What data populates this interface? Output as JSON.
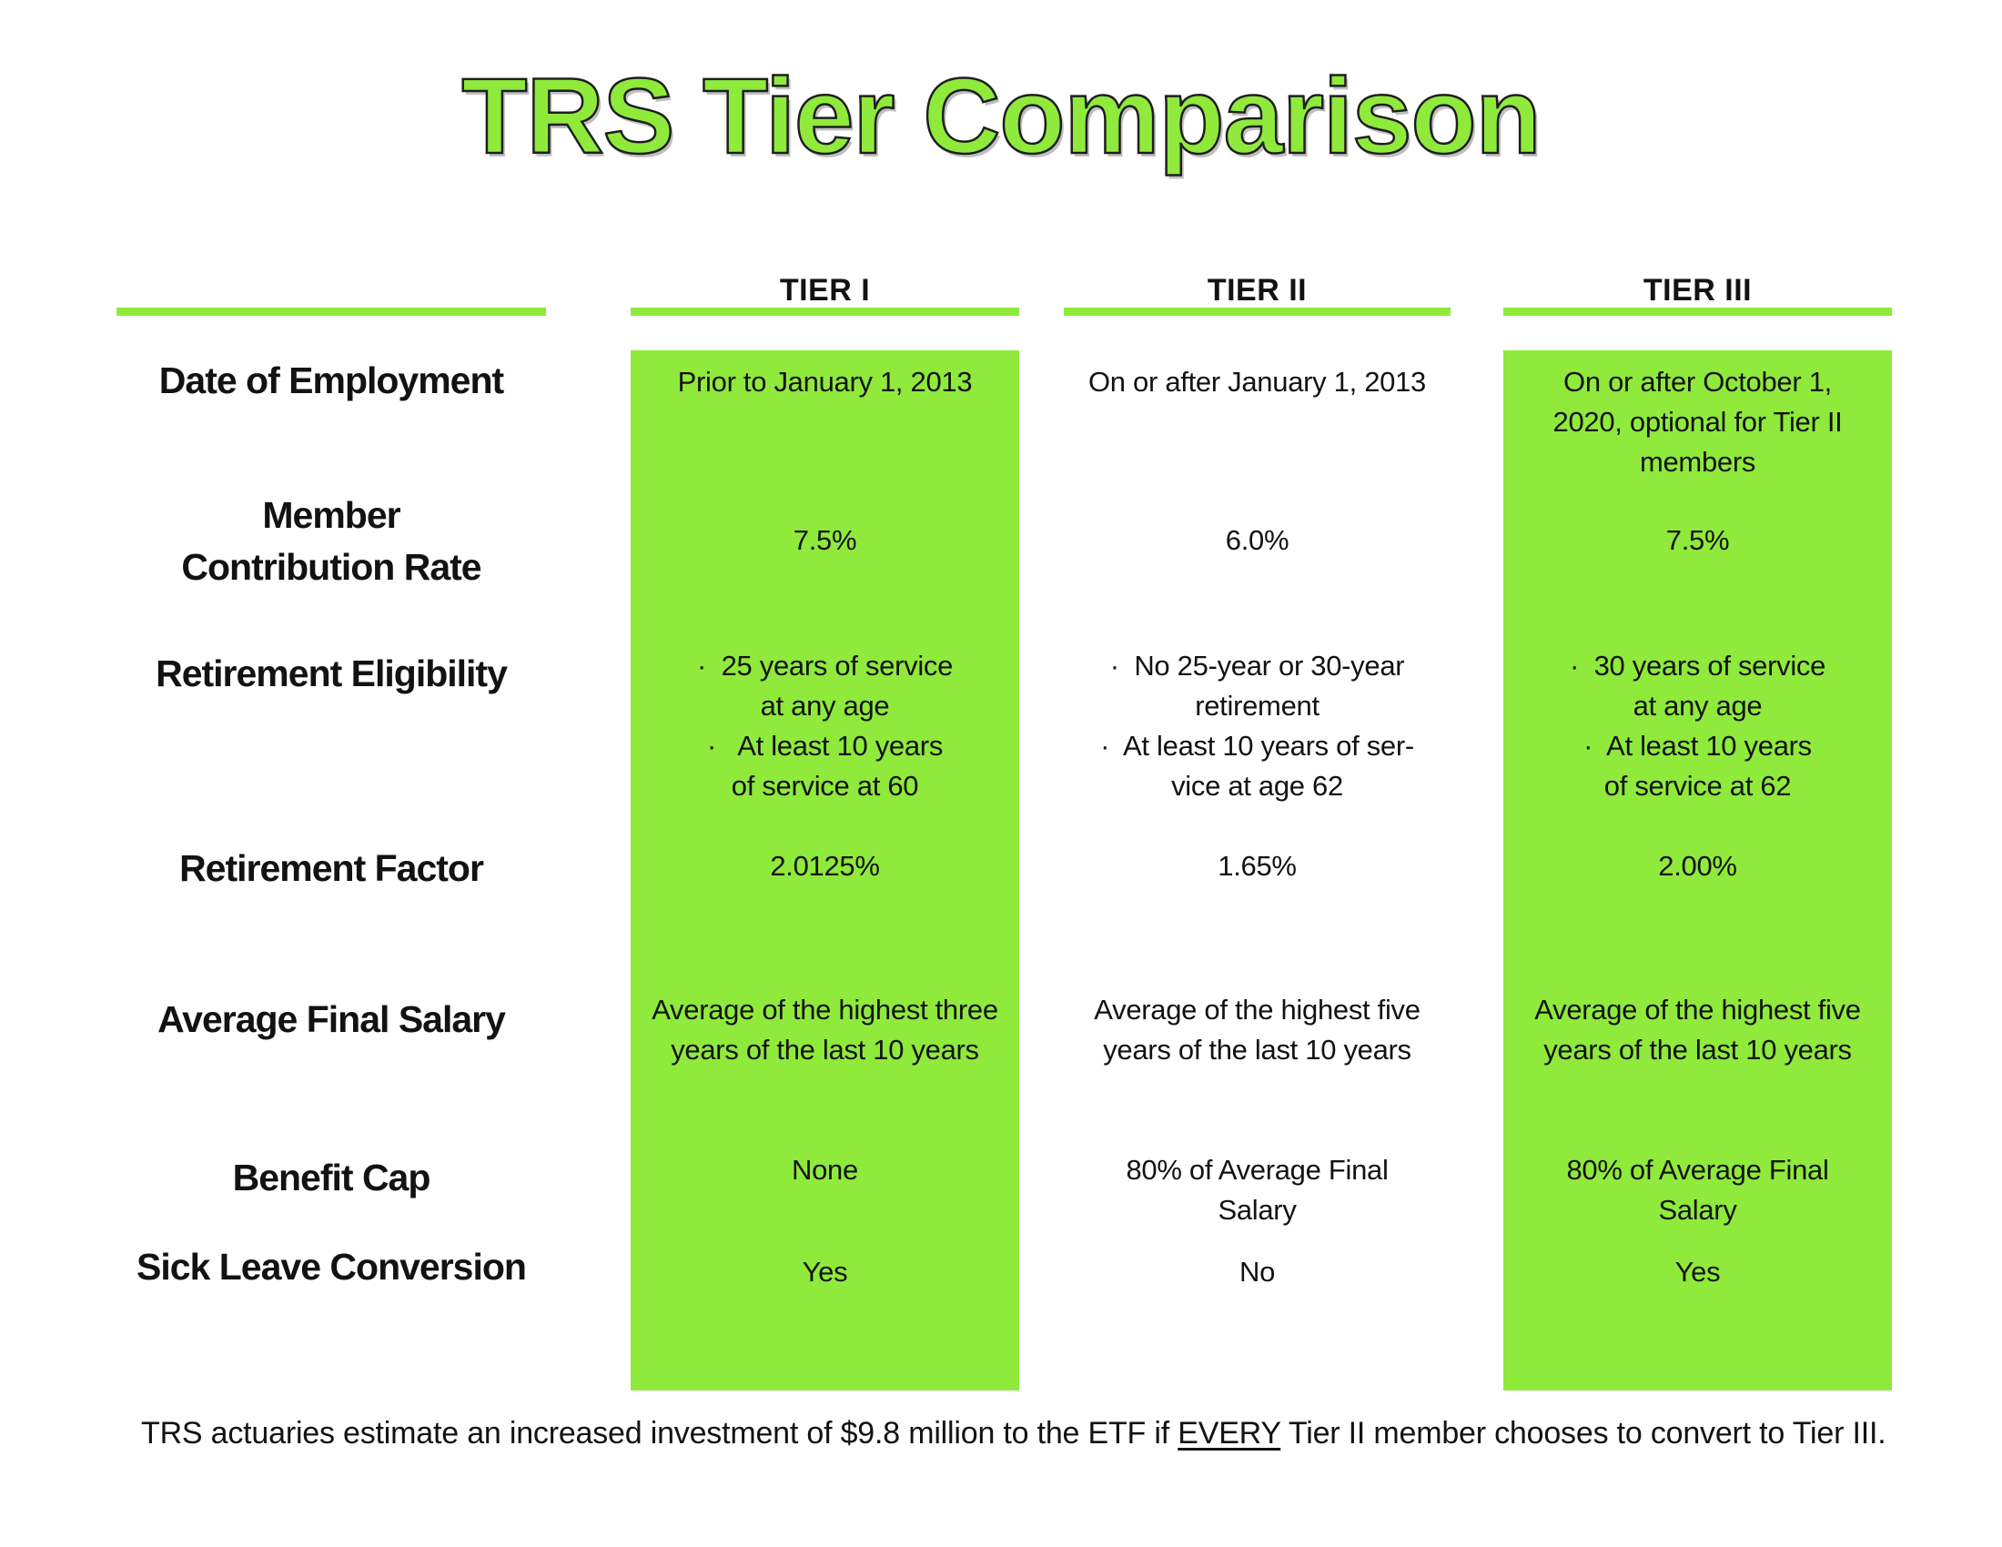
{
  "title": "TRS Tier Comparison",
  "theme": {
    "green": "#8FEA3C",
    "text": "#121212",
    "title_outline": "#1e1e1e"
  },
  "columns": {
    "tier1": "TIER I",
    "tier2": "TIER II",
    "tier3": "TIER III"
  },
  "rows": [
    {
      "label": "Date of Employment",
      "tier1": "Prior to January 1, 2013",
      "tier2": "On or after January 1, 2013",
      "tier3": "On or after October 1,\n2020, optional for Tier II\nmembers"
    },
    {
      "label": "Member\nContribution Rate",
      "tier1": "7.5%",
      "tier2": "6.0%",
      "tier3": "7.5%"
    },
    {
      "label": "Retirement Eligibility",
      "tier1": "·  25 years of service\nat any age\n·   At least 10 years\nof service at 60",
      "tier2": "·  No 25-year or 30-year\nretirement\n·  At least 10 years of ser-\nvice at age 62",
      "tier3": "·  30 years of service\nat any age\n·  At least 10 years\nof service at 62"
    },
    {
      "label": "Retirement Factor",
      "tier1": "2.0125%",
      "tier2": "1.65%",
      "tier3": "2.00%"
    },
    {
      "label": "Average Final Salary",
      "tier1": "Average of the highest three\nyears of the last 10 years",
      "tier2": "Average of the highest five\nyears of the last 10 years",
      "tier3": "Average of the highest five\nyears of the last 10 years"
    },
    {
      "label": "Benefit Cap",
      "tier1": "None",
      "tier2": "80% of Average Final\nSalary",
      "tier3": "80% of Average Final\nSalary"
    },
    {
      "label": "Sick Leave Conversion",
      "tier1": "Yes",
      "tier2": "No",
      "tier3": "Yes"
    }
  ],
  "footer": {
    "prefix": "TRS actuaries estimate an increased investment of $9.8 million to the ETF if ",
    "underlined": "EVERY",
    "suffix": " Tier II member chooses to convert to Tier III."
  }
}
